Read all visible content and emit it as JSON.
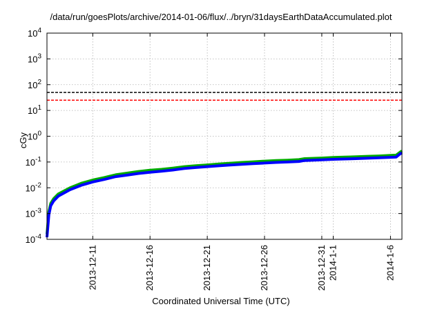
{
  "chart_data": {
    "type": "line",
    "title": "/data/run/goesPlots/archive/2014-01-06/flux/../bryn/31daysEarthDataAccumulated.plot",
    "xlabel": "Coordinated Universal Time (UTC)",
    "ylabel": "cGy",
    "yscale": "log",
    "ylim": [
      0.0001,
      10000
    ],
    "xlim": [
      "2013-12-07",
      "2014-01-07"
    ],
    "grid": true,
    "legend": "none",
    "y_ticks": [
      {
        "value": 0.0001,
        "label": "10",
        "exp": "-4"
      },
      {
        "value": 0.001,
        "label": "10",
        "exp": "-3"
      },
      {
        "value": 0.01,
        "label": "10",
        "exp": "-2"
      },
      {
        "value": 0.1,
        "label": "10",
        "exp": "-1"
      },
      {
        "value": 1,
        "label": "10",
        "exp": "0"
      },
      {
        "value": 10,
        "label": "10",
        "exp": "1"
      },
      {
        "value": 100,
        "label": "10",
        "exp": "2"
      },
      {
        "value": 1000,
        "label": "10",
        "exp": "3"
      },
      {
        "value": 10000,
        "label": "10",
        "exp": "4"
      }
    ],
    "x_ticks": [
      {
        "date": "2013-12-11",
        "label": "2013-12-11"
      },
      {
        "date": "2013-12-16",
        "label": "2013-12-16"
      },
      {
        "date": "2013-12-21",
        "label": "2013-12-21"
      },
      {
        "date": "2013-12-26",
        "label": "2013-12-26"
      },
      {
        "date": "2013-12-31",
        "label": "2013-12-31"
      },
      {
        "date": "2014-01-01",
        "label": "2014-1-1"
      },
      {
        "date": "2014-01-06",
        "label": "2014-1-6"
      }
    ],
    "reference_lines": [
      {
        "y": 50,
        "color": "#000000",
        "style": "dashed"
      },
      {
        "y": 25,
        "color": "#ff0000",
        "style": "dashed"
      }
    ],
    "series": [
      {
        "color": "#00aa00",
        "points": [
          [
            "2013-12-07T00:00",
            0.00016
          ],
          [
            "2013-12-07T04:00",
            0.0012
          ],
          [
            "2013-12-07T08:00",
            0.0025
          ],
          [
            "2013-12-07T14:00",
            0.0038
          ],
          [
            "2013-12-08T00:00",
            0.0058
          ],
          [
            "2013-12-09T00:00",
            0.0099
          ],
          [
            "2013-12-10T00:00",
            0.015
          ],
          [
            "2013-12-11T00:00",
            0.02
          ],
          [
            "2013-12-12T00:00",
            0.025
          ],
          [
            "2013-12-13T00:00",
            0.032
          ],
          [
            "2013-12-14T00:00",
            0.037
          ],
          [
            "2013-12-15T00:00",
            0.043
          ],
          [
            "2013-12-16T00:00",
            0.048
          ],
          [
            "2013-12-17T00:00",
            0.052
          ],
          [
            "2013-12-18T00:00",
            0.058
          ],
          [
            "2013-12-19T00:00",
            0.066
          ],
          [
            "2013-12-20T00:00",
            0.072
          ],
          [
            "2013-12-21T00:00",
            0.077
          ],
          [
            "2013-12-22T00:00",
            0.084
          ],
          [
            "2013-12-23T00:00",
            0.09
          ],
          [
            "2013-12-24T00:00",
            0.096
          ],
          [
            "2013-12-25T00:00",
            0.102
          ],
          [
            "2013-12-26T00:00",
            0.108
          ],
          [
            "2013-12-27T00:00",
            0.114
          ],
          [
            "2013-12-28T00:00",
            0.118
          ],
          [
            "2013-12-29T00:00",
            0.124
          ],
          [
            "2013-12-29T12:00",
            0.135
          ],
          [
            "2013-12-31T00:00",
            0.143
          ],
          [
            "2014-01-01T00:00",
            0.15
          ],
          [
            "2014-01-02T00:00",
            0.155
          ],
          [
            "2014-01-03T00:00",
            0.16
          ],
          [
            "2014-01-04T00:00",
            0.166
          ],
          [
            "2014-01-05T00:00",
            0.172
          ],
          [
            "2014-01-06T00:00",
            0.18
          ],
          [
            "2014-01-06T12:00",
            0.185
          ],
          [
            "2014-01-06T20:00",
            0.24
          ],
          [
            "2014-01-07T00:00",
            0.27
          ]
        ]
      },
      {
        "color": "#0000ff",
        "points": [
          [
            "2013-12-07T00:00",
            0.00012
          ],
          [
            "2013-12-07T04:00",
            0.0009
          ],
          [
            "2013-12-07T08:00",
            0.002
          ],
          [
            "2013-12-07T14:00",
            0.0031
          ],
          [
            "2013-12-08T00:00",
            0.0048
          ],
          [
            "2013-12-09T00:00",
            0.0084
          ],
          [
            "2013-12-10T00:00",
            0.0125
          ],
          [
            "2013-12-11T00:00",
            0.0168
          ],
          [
            "2013-12-12T00:00",
            0.021
          ],
          [
            "2013-12-13T00:00",
            0.027
          ],
          [
            "2013-12-14T00:00",
            0.031
          ],
          [
            "2013-12-15T00:00",
            0.036
          ],
          [
            "2013-12-16T00:00",
            0.04
          ],
          [
            "2013-12-17T00:00",
            0.044
          ],
          [
            "2013-12-18T00:00",
            0.049
          ],
          [
            "2013-12-19T00:00",
            0.056
          ],
          [
            "2013-12-20T00:00",
            0.061
          ],
          [
            "2013-12-21T00:00",
            0.066
          ],
          [
            "2013-12-22T00:00",
            0.071
          ],
          [
            "2013-12-23T00:00",
            0.076
          ],
          [
            "2013-12-24T00:00",
            0.081
          ],
          [
            "2013-12-25T00:00",
            0.086
          ],
          [
            "2013-12-26T00:00",
            0.091
          ],
          [
            "2013-12-27T00:00",
            0.096
          ],
          [
            "2013-12-28T00:00",
            0.1
          ],
          [
            "2013-12-29T00:00",
            0.105
          ],
          [
            "2013-12-29T12:00",
            0.114
          ],
          [
            "2013-12-31T00:00",
            0.121
          ],
          [
            "2014-01-01T00:00",
            0.127
          ],
          [
            "2014-01-02T00:00",
            0.131
          ],
          [
            "2014-01-03T00:00",
            0.135
          ],
          [
            "2014-01-04T00:00",
            0.14
          ],
          [
            "2014-01-05T00:00",
            0.145
          ],
          [
            "2014-01-06T00:00",
            0.152
          ],
          [
            "2014-01-06T12:00",
            0.156
          ],
          [
            "2014-01-06T20:00",
            0.205
          ],
          [
            "2014-01-07T00:00",
            0.23
          ]
        ]
      }
    ]
  }
}
